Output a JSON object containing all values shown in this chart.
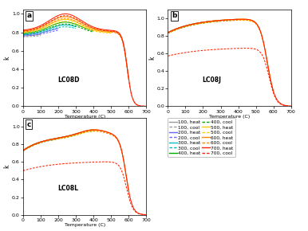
{
  "panels": [
    "a",
    "b",
    "c"
  ],
  "panel_labels": [
    "LC08D",
    "LC08J",
    "LC08L"
  ],
  "xlabel": "Temperature (C)",
  "ylabel": "k",
  "xlim": [
    0,
    700
  ],
  "cycles": [
    100,
    200,
    300,
    400,
    500,
    600,
    700
  ],
  "cycle_colors": {
    "100": "#999999",
    "200": "#6666ff",
    "300": "#00bbbb",
    "400": "#00aa00",
    "500": "#ffcc00",
    "600": "#ff8800",
    "700": "#ff2200"
  },
  "legend_labels": [
    "100, heat",
    "100, cool",
    "200, heat",
    "200, cool",
    "300, heat",
    "300, cool",
    "400, heat",
    "400, cool",
    "500, heat",
    "500, cool",
    "600, heat",
    "600, cool",
    "700, heat",
    "700, cool"
  ],
  "panel_a_ylim": [
    0.0,
    1.05
  ],
  "panel_a_yticks": [
    0.0,
    0.2,
    0.4,
    0.6,
    0.8,
    1.0
  ],
  "panel_bc_ylim": [
    0.0,
    1.1
  ],
  "panel_bc_yticks": [
    0.0,
    0.2,
    0.4,
    0.6,
    0.8,
    1.0
  ]
}
